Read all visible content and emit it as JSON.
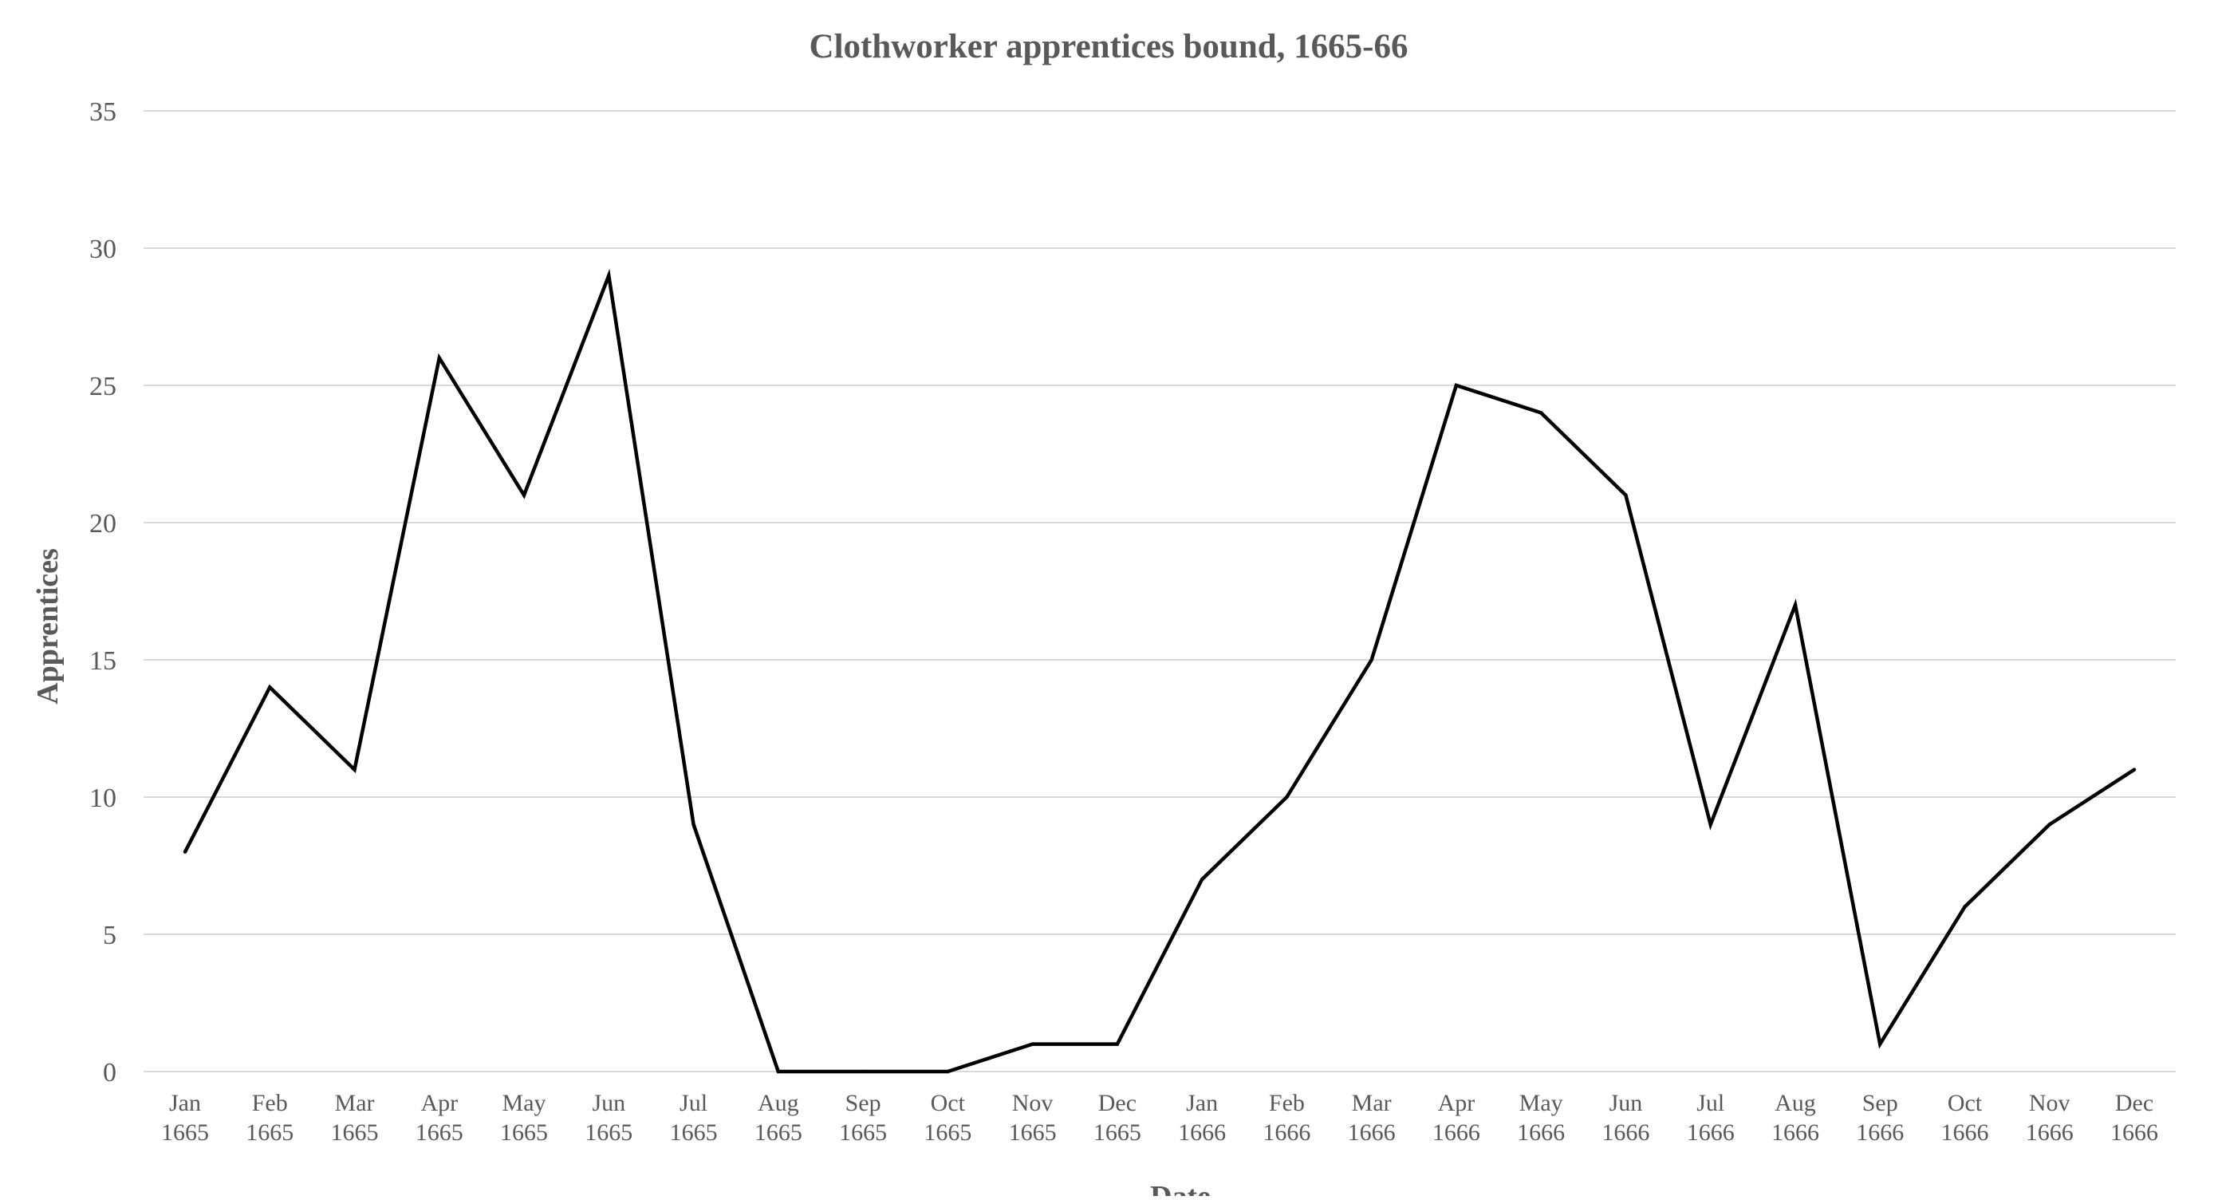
{
  "chart_data": {
    "type": "line",
    "title": "Clothworker apprentices bound, 1665-66",
    "xlabel": "Date",
    "ylabel": "Apprentices",
    "ylim": [
      0,
      35
    ],
    "yticks": [
      0,
      5,
      10,
      15,
      20,
      25,
      30,
      35
    ],
    "grid": true,
    "legend": "none",
    "categories": [
      {
        "month": "Jan",
        "year": "1665"
      },
      {
        "month": "Feb",
        "year": "1665"
      },
      {
        "month": "Mar",
        "year": "1665"
      },
      {
        "month": "Apr",
        "year": "1665"
      },
      {
        "month": "May",
        "year": "1665"
      },
      {
        "month": "Jun",
        "year": "1665"
      },
      {
        "month": "Jul",
        "year": "1665"
      },
      {
        "month": "Aug",
        "year": "1665"
      },
      {
        "month": "Sep",
        "year": "1665"
      },
      {
        "month": "Oct",
        "year": "1665"
      },
      {
        "month": "Nov",
        "year": "1665"
      },
      {
        "month": "Dec",
        "year": "1665"
      },
      {
        "month": "Jan",
        "year": "1666"
      },
      {
        "month": "Feb",
        "year": "1666"
      },
      {
        "month": "Mar",
        "year": "1666"
      },
      {
        "month": "Apr",
        "year": "1666"
      },
      {
        "month": "May",
        "year": "1666"
      },
      {
        "month": "Jun",
        "year": "1666"
      },
      {
        "month": "Jul",
        "year": "1666"
      },
      {
        "month": "Aug",
        "year": "1666"
      },
      {
        "month": "Sep",
        "year": "1666"
      },
      {
        "month": "Oct",
        "year": "1666"
      },
      {
        "month": "Nov",
        "year": "1666"
      },
      {
        "month": "Dec",
        "year": "1666"
      }
    ],
    "series": [
      {
        "values": [
          8,
          14,
          11,
          26,
          21,
          29,
          9,
          0,
          0,
          0,
          1,
          1,
          7,
          10,
          15,
          25,
          24,
          21,
          9,
          17,
          1,
          6,
          9,
          11
        ],
        "color": "#000000"
      }
    ],
    "colors": {
      "gridline": "#d9d9d9",
      "text": "#595959",
      "line": "#000000"
    }
  }
}
